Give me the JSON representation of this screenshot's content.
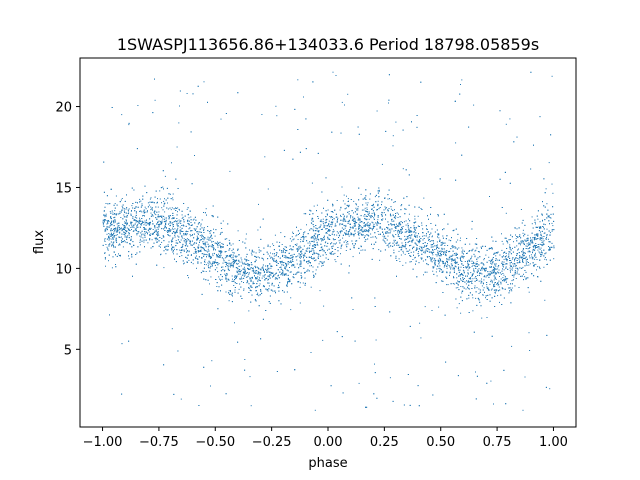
{
  "chart_data": {
    "type": "scatter",
    "title": "1SWASPJ113656.86+134033.6 Period 18798.05859s",
    "xlabel": "phase",
    "ylabel": "flux",
    "xlim": [
      -1.1,
      1.1
    ],
    "ylim": [
      0.2,
      23.0
    ],
    "xticks": [
      -1.0,
      -0.75,
      -0.5,
      -0.25,
      0.0,
      0.25,
      0.5,
      0.75,
      1.0
    ],
    "xtick_labels": [
      "−1.00",
      "−0.75",
      "−0.50",
      "−0.25",
      "0.00",
      "0.25",
      "0.50",
      "0.75",
      "1.00"
    ],
    "yticks": [
      5,
      10,
      15,
      20
    ],
    "ytick_labels": [
      "5",
      "10",
      "15",
      "20"
    ],
    "grid": false,
    "marker_color": "#1f77b4",
    "series": [
      {
        "phase_range": [
          -1.0,
          1.0
        ],
        "trend": {
          "x": [
            -1.0,
            -0.9,
            -0.8,
            -0.7,
            -0.6,
            -0.5,
            -0.4,
            -0.3,
            -0.2,
            -0.1,
            0.0,
            0.1,
            0.2,
            0.3,
            0.4,
            0.5,
            0.6,
            0.7,
            0.8,
            0.9,
            1.0
          ],
          "y": [
            12.2,
            12.6,
            13.0,
            12.6,
            11.8,
            10.8,
            9.9,
            9.6,
            10.2,
            11.2,
            12.2,
            12.6,
            13.0,
            12.6,
            11.8,
            10.8,
            9.9,
            9.6,
            10.2,
            11.2,
            12.2
          ]
        },
        "scatter_half_width": 1.2,
        "outlier_range": [
          1.2,
          22.2
        ]
      }
    ]
  }
}
